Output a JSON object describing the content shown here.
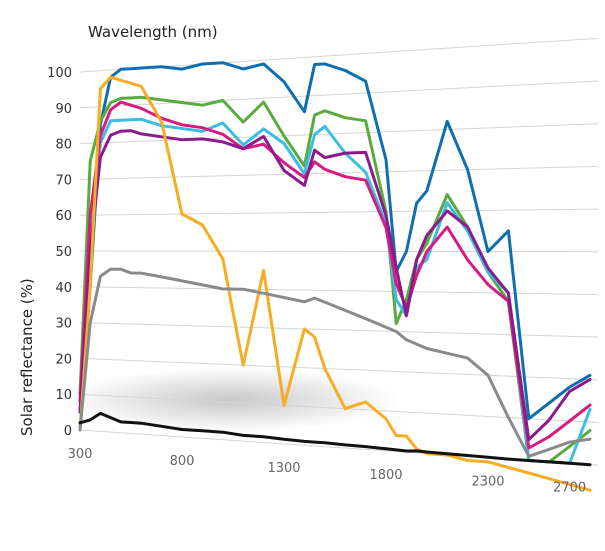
{
  "chart_data": {
    "type": "line",
    "title": "Wavelength (nm)",
    "xlabel": "",
    "ylabel": "Solar reflectance (%)",
    "xlim": [
      300,
      2800
    ],
    "ylim": [
      0,
      100
    ],
    "x_ticks": [
      "300",
      "800",
      "1300",
      "1800",
      "2300",
      "2700"
    ],
    "y_ticks": [
      "0",
      "10",
      "20",
      "30",
      "40",
      "50",
      "60",
      "70",
      "80",
      "90",
      "100"
    ],
    "grid": true,
    "x": [
      300,
      350,
      400,
      450,
      500,
      550,
      600,
      700,
      800,
      900,
      1000,
      1100,
      1200,
      1300,
      1400,
      1450,
      1500,
      1600,
      1700,
      1800,
      1850,
      1900,
      1950,
      2000,
      2100,
      2200,
      2300,
      2400,
      2500,
      2600,
      2700,
      2800
    ],
    "series": [
      {
        "color": "#0e6fb0",
        "values": [
          5,
          40,
          85,
          98,
          100,
          100,
          100,
          100,
          99,
          100,
          100,
          98,
          99,
          94,
          86,
          98,
          98,
          96,
          93,
          73,
          45,
          50,
          62,
          65,
          82,
          70,
          50,
          55,
          10,
          14,
          18,
          21
        ]
      },
      {
        "color": "#5aab3e",
        "values": [
          10,
          75,
          86,
          91,
          92,
          92,
          92,
          91,
          90,
          89,
          90,
          84,
          89,
          80,
          72,
          85,
          86,
          84,
          83,
          60,
          32,
          38,
          48,
          52,
          64,
          56,
          45,
          38,
          0,
          0,
          4,
          8
        ]
      },
      {
        "color": "#3bbde2",
        "values": [
          5,
          55,
          80,
          86,
          86,
          86,
          86,
          84,
          83,
          82,
          84,
          78,
          82,
          78,
          70,
          80,
          82,
          75,
          70,
          57,
          38,
          34,
          46,
          48,
          62,
          55,
          45,
          40,
          0,
          0,
          0,
          13
        ]
      },
      {
        "color": "#d81b7f",
        "values": [
          8,
          60,
          82,
          89,
          91,
          90,
          89,
          86,
          84,
          83,
          81,
          77,
          78,
          73,
          69,
          73,
          71,
          69,
          68,
          56,
          42,
          36,
          44,
          50,
          56,
          48,
          42,
          38,
          3,
          6,
          10,
          14
        ]
      },
      {
        "color": "#8b1a8a",
        "values": [
          5,
          50,
          76,
          82,
          83,
          83,
          82,
          81,
          80,
          80,
          79,
          77,
          80,
          71,
          67,
          76,
          74,
          75,
          75,
          59,
          46,
          34,
          48,
          54,
          60,
          56,
          46,
          40,
          5,
          10,
          17,
          20
        ]
      },
      {
        "color": "#f5ad25",
        "values": [
          0,
          40,
          95,
          98,
          97,
          96,
          95,
          85,
          60,
          57,
          48,
          20,
          45,
          10,
          30,
          28,
          20,
          10,
          12,
          8,
          4,
          4,
          1,
          0,
          0,
          -1,
          -1,
          -2,
          -3,
          -4,
          -5,
          -6
        ]
      },
      {
        "color": "#8a8a8a",
        "values": [
          0,
          30,
          43,
          45,
          45,
          44,
          44,
          43,
          42,
          41,
          40,
          40,
          39,
          38,
          37,
          38,
          37,
          35,
          33,
          31,
          30,
          28,
          27,
          26,
          25,
          24,
          20,
          10,
          1,
          3,
          5,
          6
        ]
      },
      {
        "color": "#111111",
        "values": [
          2,
          3,
          5,
          4,
          3,
          3,
          3,
          2.5,
          2,
          2,
          2,
          1.5,
          1.5,
          1.2,
          1,
          1,
          1,
          0.8,
          0.7,
          0.5,
          0.4,
          0.3,
          0.5,
          0.4,
          0.3,
          0.2,
          0.1,
          0,
          0,
          0,
          0,
          0
        ]
      }
    ]
  }
}
